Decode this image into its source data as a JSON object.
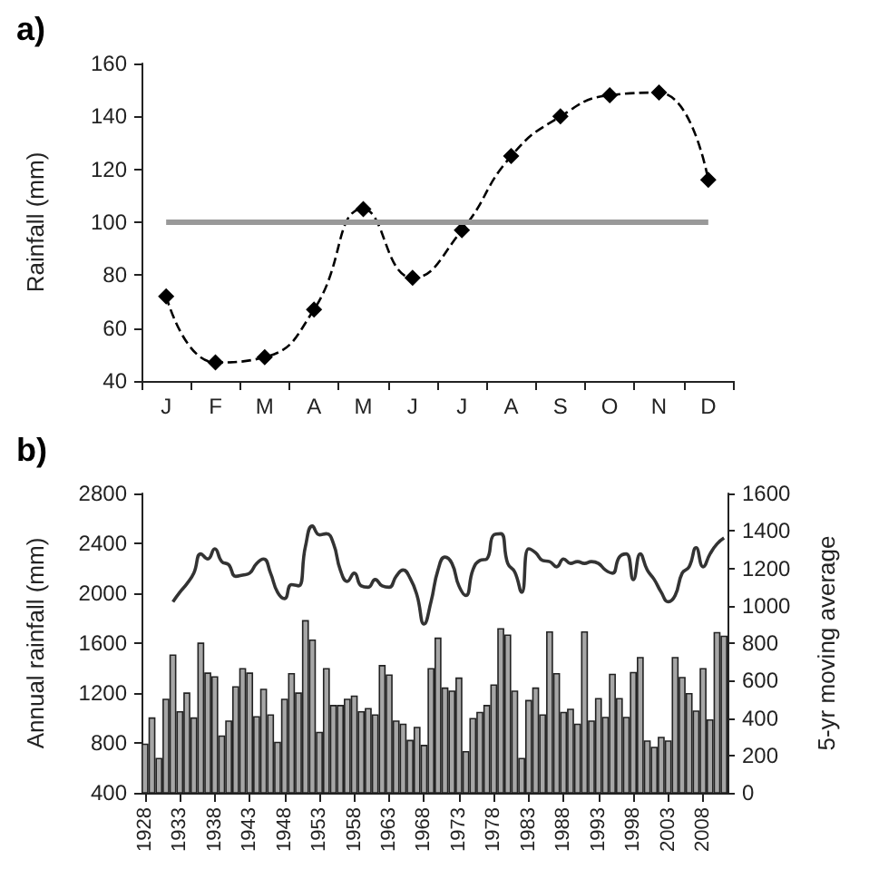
{
  "chart_data": [
    {
      "type": "line",
      "title": "a)",
      "ylabel": "Rainfall (mm)",
      "categories": [
        "J",
        "F",
        "M",
        "A",
        "M",
        "J",
        "J",
        "A",
        "S",
        "O",
        "N",
        "D"
      ],
      "series": [
        {
          "color": "#000000",
          "marker": "diamond",
          "line_style": "dashed",
          "values": [
            72,
            47,
            49,
            67,
            105,
            79,
            97,
            125,
            140,
            148,
            149,
            116
          ]
        }
      ],
      "ylim": [
        40,
        160
      ],
      "yticks": [
        40,
        60,
        80,
        100,
        120,
        140,
        160
      ],
      "ref_lines": [
        {
          "axis": "y",
          "value": 100,
          "color": "#999999"
        }
      ]
    },
    {
      "type": "bar",
      "title": "b)",
      "ylabel": "Annual rainfall (mm)",
      "y2label": "5-yr moving average",
      "categories": [
        "1928",
        null,
        null,
        null,
        null,
        "1933",
        null,
        null,
        null,
        null,
        "1938",
        null,
        null,
        null,
        null,
        "1943",
        null,
        null,
        null,
        null,
        "1948",
        null,
        null,
        null,
        null,
        "1953",
        null,
        null,
        null,
        null,
        "1958",
        null,
        null,
        null,
        null,
        "1963",
        null,
        null,
        null,
        null,
        "1968",
        null,
        null,
        null,
        null,
        "1973",
        null,
        null,
        null,
        null,
        "1978",
        null,
        null,
        null,
        null,
        "1983",
        null,
        null,
        null,
        null,
        "1988",
        null,
        null,
        null,
        null,
        "1993",
        null,
        null,
        null,
        null,
        "1998",
        null,
        null,
        null,
        null,
        "2003",
        null,
        null,
        null,
        null,
        "2008",
        null,
        null,
        null
      ],
      "series": [
        {
          "color": "#a6a6a6",
          "values": [
            795,
            1005,
            680,
            1155,
            1510,
            1055,
            1205,
            1005,
            1605,
            1365,
            1335,
            860,
            980,
            1255,
            1400,
            1365,
            1015,
            1235,
            1030,
            810,
            1155,
            1360,
            1205,
            1785,
            1630,
            890,
            1400,
            1105,
            1105,
            1155,
            1180,
            1055,
            1080,
            1030,
            1425,
            1350,
            980,
            955,
            825,
            930,
            785,
            1400,
            1645,
            1245,
            1220,
            1325,
            735,
            1000,
            1050,
            1105,
            1270,
            1720,
            1670,
            1220,
            680,
            1145,
            1245,
            1030,
            1695,
            1360,
            1050,
            1075,
            955,
            1695,
            980,
            1160,
            1010,
            1355,
            1160,
            1010,
            1370,
            1490,
            820,
            770,
            850,
            820,
            1490,
            1330,
            1200,
            1060,
            1400,
            990,
            1690,
            1660
          ]
        },
        {
          "type": "line",
          "axis": "y2",
          "color": "#333333",
          "marker": "none",
          "values": [
            null,
            null,
            null,
            null,
            1021,
            1072,
            1117,
            1174,
            1277,
            1250,
            1304,
            1236,
            1219,
            1157,
            1164,
            1174,
            1226,
            1250,
            1174,
            1072,
            1038,
            1113,
            1106,
            1317,
            1426,
            1379,
            1385,
            1334,
            1191,
            1130,
            1174,
            1106,
            1099,
            1140,
            1106,
            1099,
            1157,
            1191,
            1147,
            1055,
            902,
            1021,
            1191,
            1260,
            1226,
            1106,
            1055,
            1191,
            1242,
            1250,
            1379,
            1385,
            1226,
            1181,
            1072,
            1304,
            1283,
            1242,
            1236,
            1208,
            1250,
            1226,
            1236,
            1226,
            1236,
            1226,
            1191,
            1174,
            1260,
            1277,
            1140,
            1277,
            1191,
            1140,
            1072,
            1021,
            1055,
            1174,
            1208,
            1310,
            1208,
            1277,
            1330,
            1362
          ]
        }
      ],
      "ylim": [
        400,
        2800
      ],
      "yticks": [
        400,
        800,
        1200,
        1600,
        2000,
        2400,
        2800
      ],
      "y2lim": [
        0,
        1600
      ],
      "y2ticks": [
        0,
        200,
        400,
        600,
        800,
        1000,
        1200,
        1400,
        1600
      ]
    }
  ]
}
